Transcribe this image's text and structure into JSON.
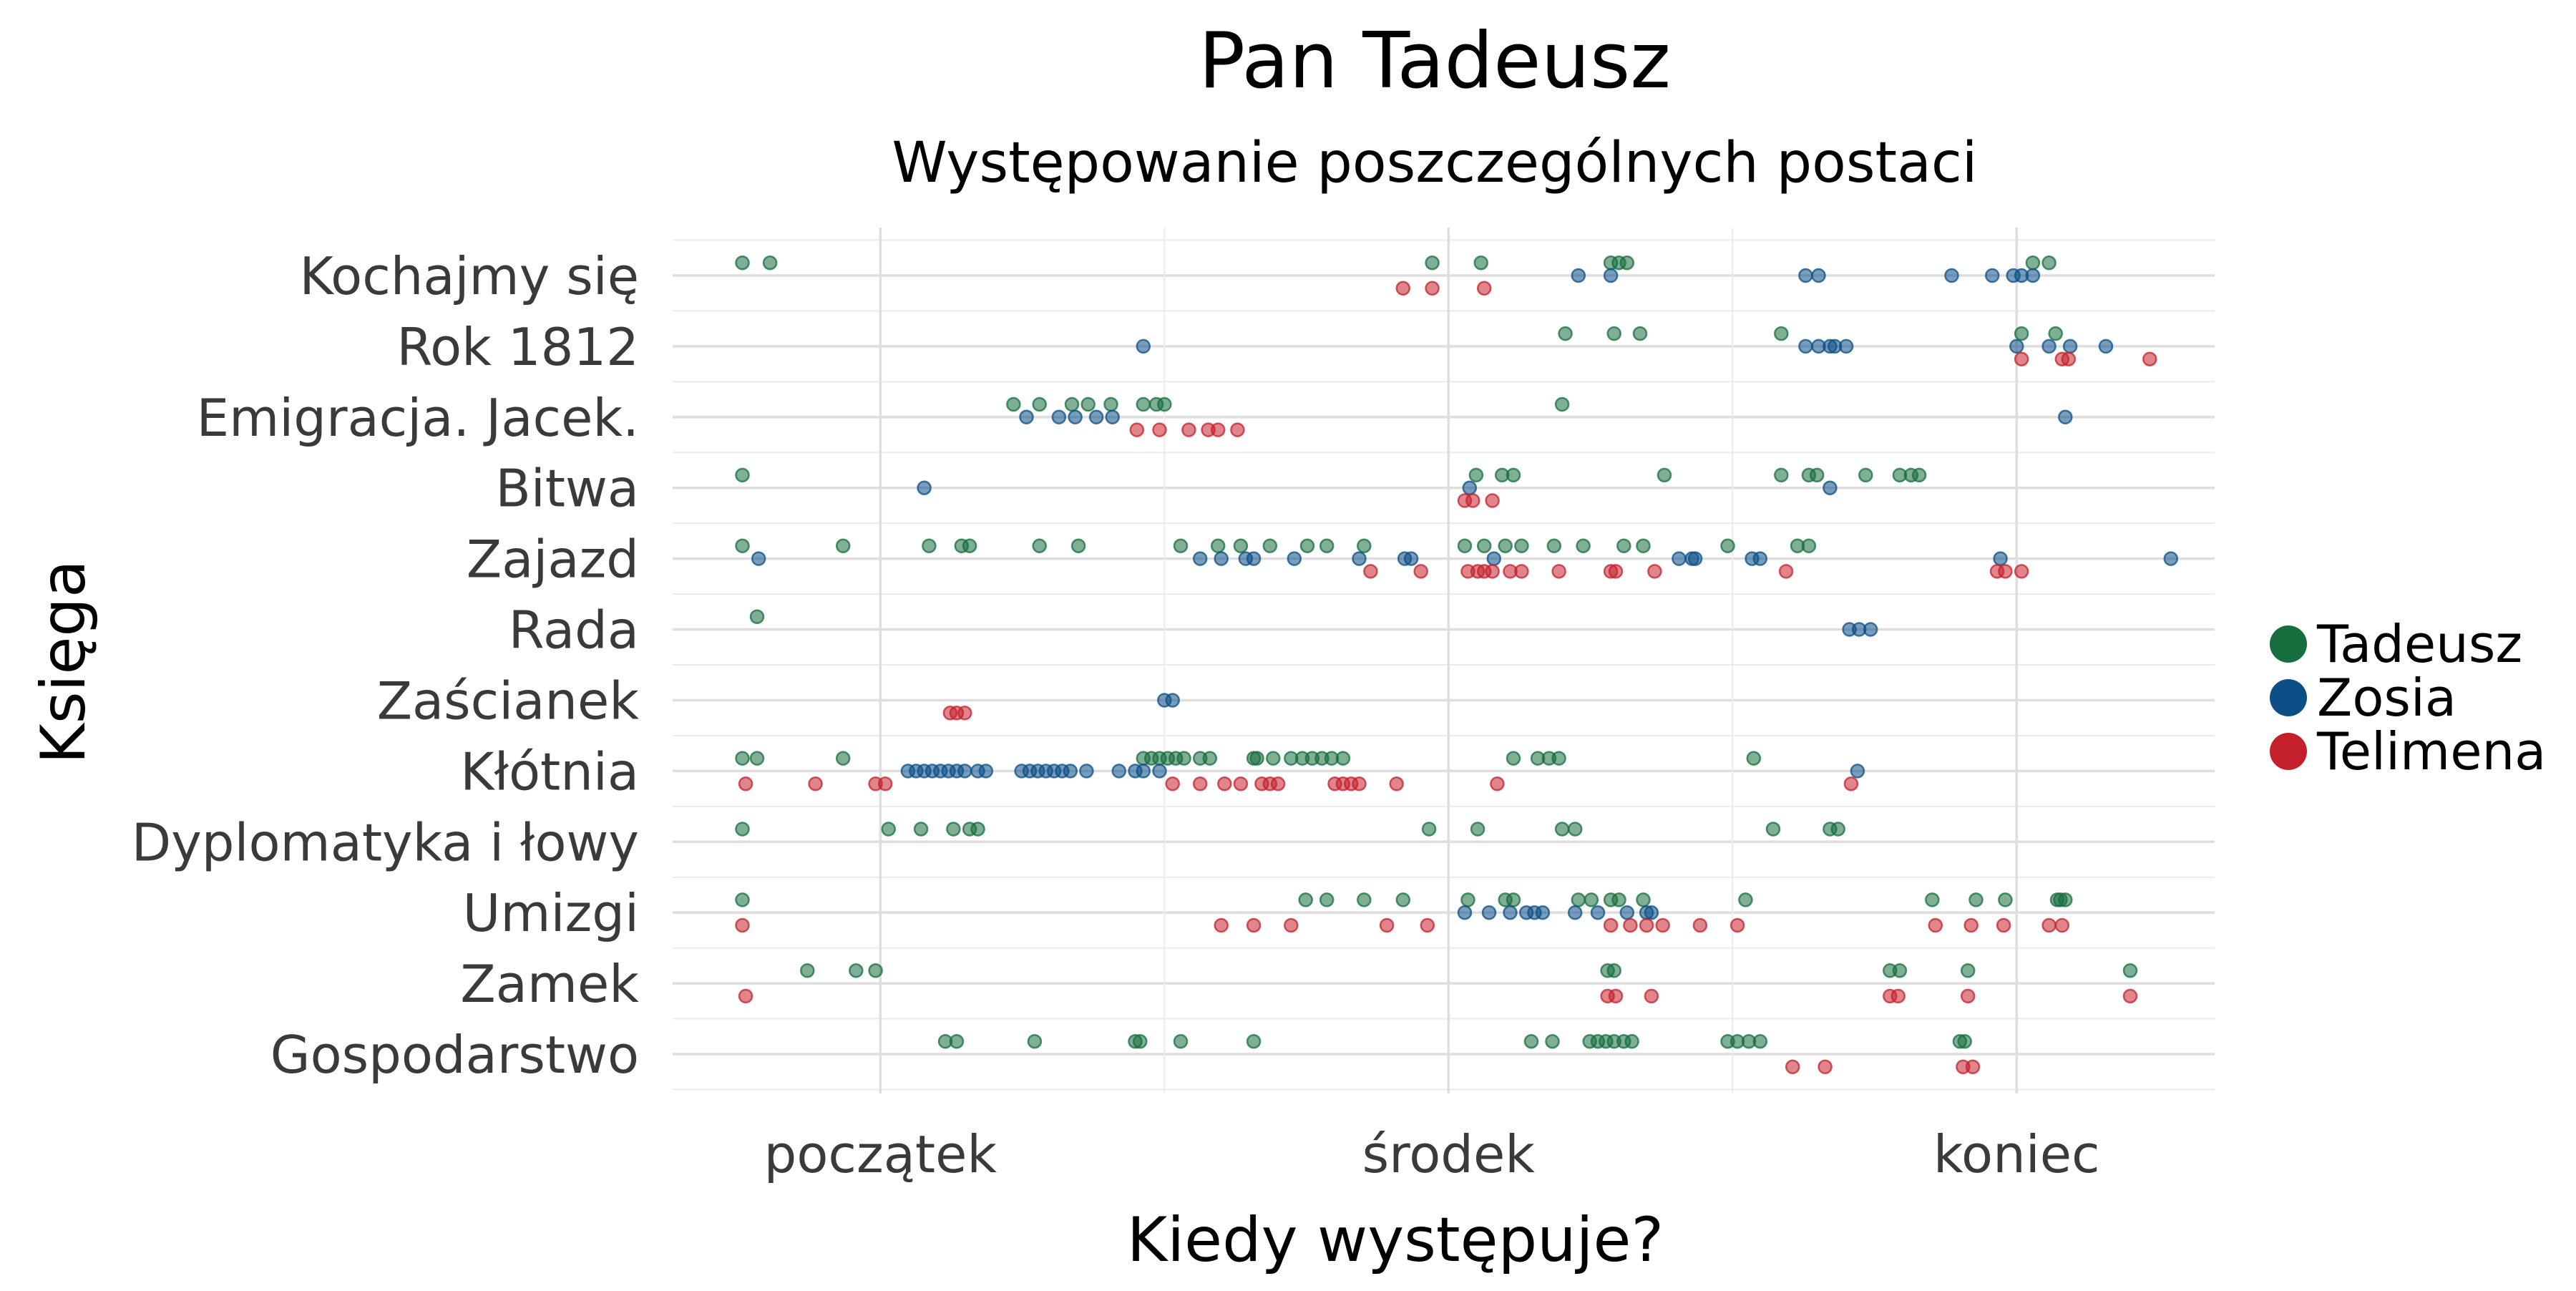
{
  "chart_data": {
    "type": "scatter",
    "title": "Pan Tadeusz",
    "subtitle": "Występowanie poszczególnych postaci",
    "xlabel": "Kiedy występuje?",
    "ylabel": "Księga",
    "x_tick_labels": [
      {
        "value": 0.15,
        "label": "początek"
      },
      {
        "value": 0.5,
        "label": "środek"
      },
      {
        "value": 0.85,
        "label": "koniec"
      }
    ],
    "x_minor_gridlines": [
      0.325,
      0.675
    ],
    "xlim": [
      0.022,
      0.972
    ],
    "grid": true,
    "legend_position": "right",
    "categories": [
      "Kochajmy się",
      "Rok 1812",
      "Emigracja. Jacek.",
      "Bitwa",
      "Zajazd",
      "Rada",
      "Zaścianek",
      "Kłótnia",
      "Dyplomatyka i łowy",
      "Umizgi",
      "Zamek",
      "Gospodarstwo"
    ],
    "series": [
      {
        "name": "Tadeusz",
        "color": "#166e3e",
        "offset": -0.18,
        "points": {
          "Kochajmy się": [
            0.065,
            0.082,
            0.49,
            0.52,
            0.6,
            0.605,
            0.61,
            0.86,
            0.87
          ],
          "Rok 1812": [
            0.572,
            0.602,
            0.618,
            0.705,
            0.853,
            0.874
          ],
          "Emigracja. Jacek.": [
            0.232,
            0.248,
            0.268,
            0.278,
            0.292,
            0.312,
            0.32,
            0.325,
            0.57
          ],
          "Bitwa": [
            0.065,
            0.517,
            0.533,
            0.54,
            0.633,
            0.705,
            0.722,
            0.727,
            0.757,
            0.778,
            0.785,
            0.79
          ],
          "Zajazd": [
            0.065,
            0.127,
            0.18,
            0.2,
            0.205,
            0.248,
            0.272,
            0.335,
            0.358,
            0.372,
            0.39,
            0.413,
            0.425,
            0.448,
            0.51,
            0.522,
            0.535,
            0.545,
            0.565,
            0.583,
            0.608,
            0.62,
            0.672,
            0.715,
            0.722
          ],
          "Rada": [
            0.074
          ],
          "Kłótnia": [
            0.065,
            0.074,
            0.127,
            0.312,
            0.317,
            0.322,
            0.327,
            0.332,
            0.337,
            0.347,
            0.353,
            0.38,
            0.382,
            0.392,
            0.403,
            0.41,
            0.416,
            0.422,
            0.428,
            0.435,
            0.54,
            0.555,
            0.562,
            0.568,
            0.688
          ],
          "Dyplomatyka i łowy": [
            0.065,
            0.155,
            0.175,
            0.195,
            0.205,
            0.21,
            0.488,
            0.518,
            0.57,
            0.578,
            0.7,
            0.735,
            0.74
          ],
          "Umizgi": [
            0.065,
            0.412,
            0.425,
            0.448,
            0.472,
            0.512,
            0.535,
            0.54,
            0.58,
            0.588,
            0.6,
            0.605,
            0.62,
            0.683,
            0.798,
            0.825,
            0.843,
            0.875,
            0.877,
            0.88
          ],
          "Zamek": [
            0.105,
            0.135,
            0.147,
            0.598,
            0.602,
            0.772,
            0.778,
            0.82,
            0.92
          ],
          "Gospodarstwo": [
            0.19,
            0.197,
            0.245,
            0.307,
            0.31,
            0.335,
            0.38,
            0.551,
            0.564,
            0.587,
            0.592,
            0.597,
            0.602,
            0.608,
            0.613,
            0.672,
            0.678,
            0.685,
            0.692,
            0.815,
            0.818
          ]
        }
      },
      {
        "name": "Zosia",
        "color": "#0b4f86",
        "offset": 0.0,
        "points": {
          "Kochajmy się": [
            0.58,
            0.6,
            0.72,
            0.728,
            0.81,
            0.835,
            0.848,
            0.853,
            0.86
          ],
          "Rok 1812": [
            0.312,
            0.72,
            0.728,
            0.735,
            0.738,
            0.745,
            0.85,
            0.87,
            0.883,
            0.905
          ],
          "Emigracja. Jacek.": [
            0.24,
            0.26,
            0.27,
            0.283,
            0.293,
            0.88
          ],
          "Bitwa": [
            0.177,
            0.513,
            0.735
          ],
          "Zajazd": [
            0.075,
            0.347,
            0.36,
            0.375,
            0.38,
            0.405,
            0.445,
            0.473,
            0.477,
            0.528,
            0.642,
            0.65,
            0.652,
            0.687,
            0.692,
            0.84,
            0.945
          ],
          "Rada": [
            0.747,
            0.753,
            0.76
          ],
          "Zaścianek": [
            0.325,
            0.33
          ],
          "Kłótnia": [
            0.167,
            0.172,
            0.177,
            0.182,
            0.187,
            0.192,
            0.197,
            0.202,
            0.21,
            0.215,
            0.237,
            0.242,
            0.247,
            0.252,
            0.257,
            0.262,
            0.267,
            0.277,
            0.297,
            0.307,
            0.312,
            0.322,
            0.752
          ],
          "Umizgi": [
            0.51,
            0.525,
            0.538,
            0.548,
            0.553,
            0.558,
            0.578,
            0.592,
            0.61,
            0.622,
            0.625
          ]
        }
      },
      {
        "name": "Telimena",
        "color": "#c4202b",
        "offset": 0.18,
        "points": {
          "Kochajmy się": [
            0.472,
            0.49,
            0.522
          ],
          "Rok 1812": [
            0.853,
            0.878,
            0.882,
            0.932
          ],
          "Emigracja. Jacek.": [
            0.308,
            0.322,
            0.34,
            0.352,
            0.358,
            0.37
          ],
          "Bitwa": [
            0.51,
            0.515,
            0.527
          ],
          "Zajazd": [
            0.452,
            0.483,
            0.512,
            0.518,
            0.522,
            0.527,
            0.538,
            0.545,
            0.568,
            0.6,
            0.603,
            0.627,
            0.708,
            0.838,
            0.843,
            0.853
          ],
          "Zaścianek": [
            0.193,
            0.197,
            0.202
          ],
          "Kłótnia": [
            0.067,
            0.11,
            0.147,
            0.153,
            0.33,
            0.347,
            0.362,
            0.372,
            0.385,
            0.39,
            0.395,
            0.43,
            0.435,
            0.44,
            0.445,
            0.468,
            0.53,
            0.748
          ],
          "Umizgi": [
            0.065,
            0.36,
            0.38,
            0.403,
            0.462,
            0.487,
            0.6,
            0.612,
            0.622,
            0.632,
            0.655,
            0.678,
            0.8,
            0.822,
            0.842,
            0.87,
            0.878
          ],
          "Zamek": [
            0.067,
            0.598,
            0.603,
            0.625,
            0.772,
            0.777,
            0.82,
            0.92
          ],
          "Gospodarstwo": [
            0.712,
            0.732,
            0.817,
            0.823
          ]
        }
      }
    ]
  }
}
